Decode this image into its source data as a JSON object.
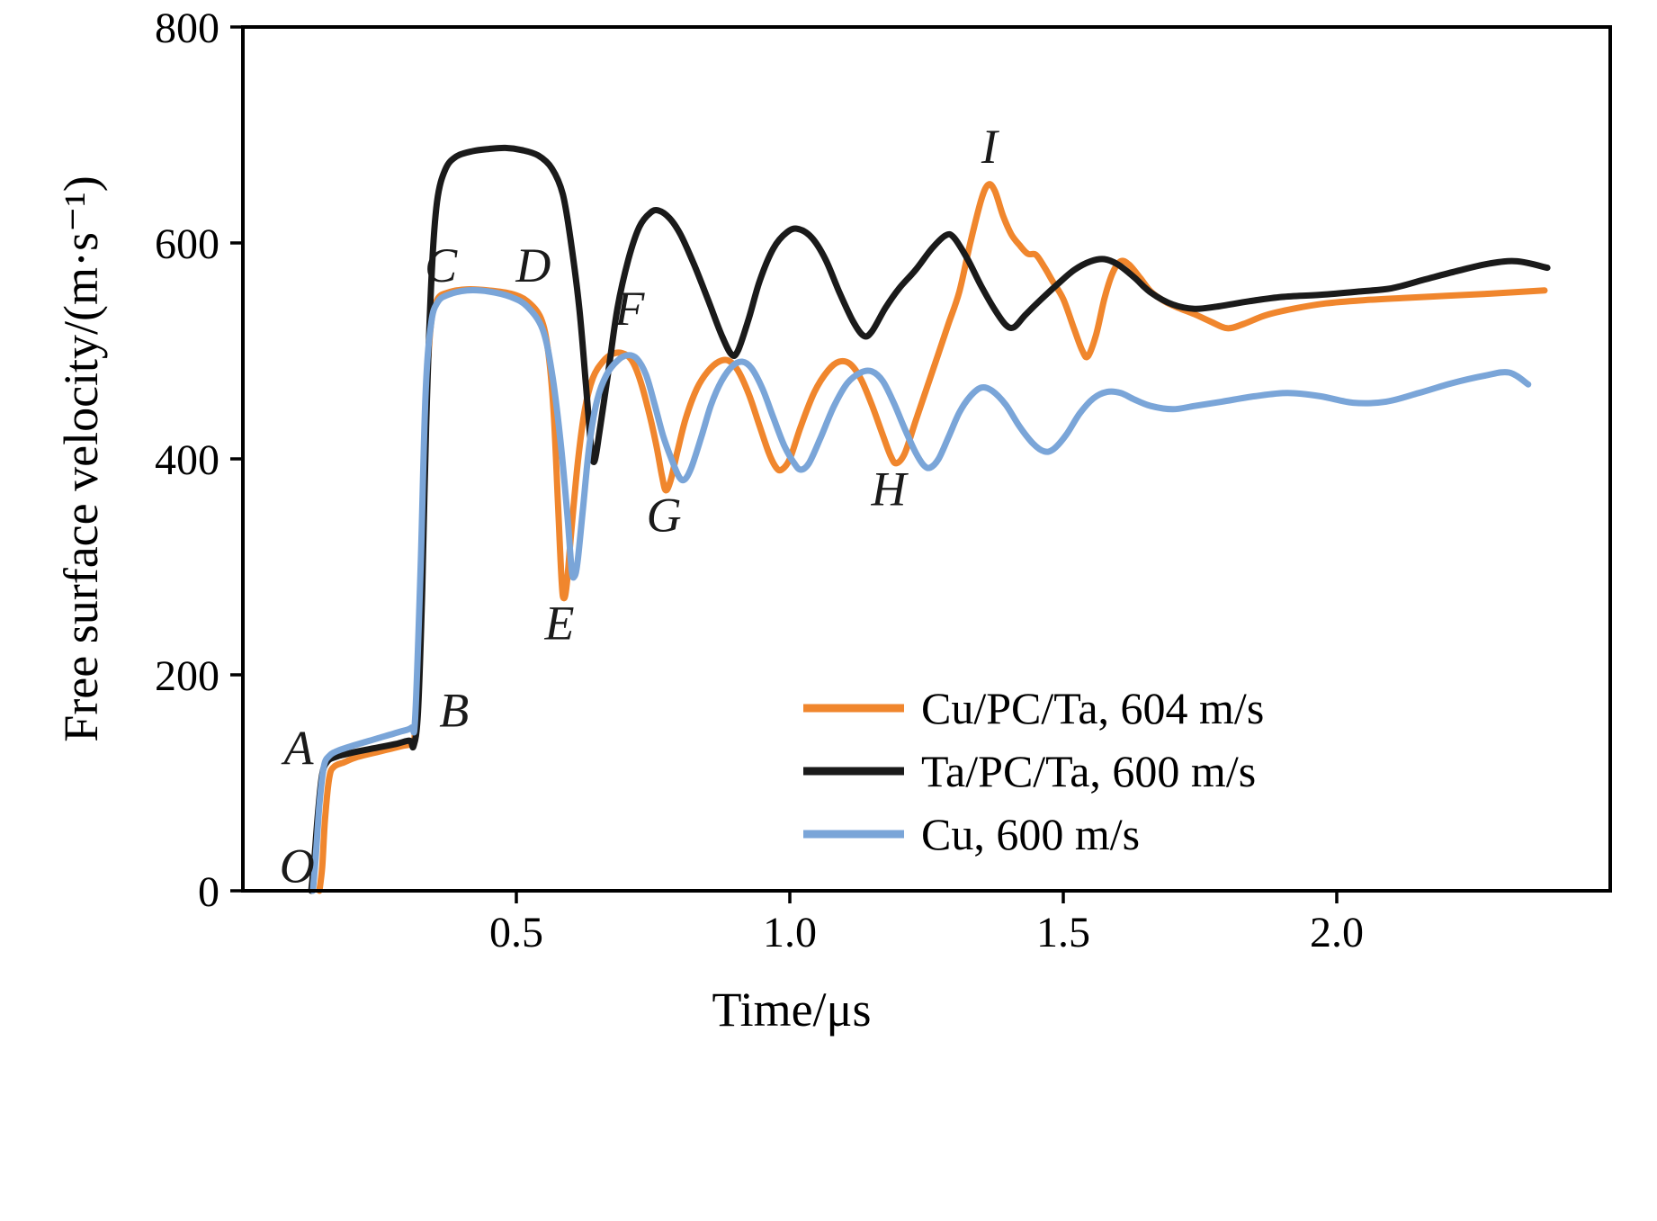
{
  "figure": {
    "background": "#ffffff",
    "frame_color": "#000000"
  },
  "chart_data": {
    "type": "line",
    "title": "",
    "xlabel": "Time/μs",
    "ylabel": "Free surface velocity/(m·s⁻¹)",
    "xlim": [
      0,
      2.5
    ],
    "ylim": [
      0,
      800
    ],
    "x_ticks": [
      0.5,
      1.0,
      1.5,
      2.0
    ],
    "x_tick_labels": [
      "0.5",
      "1.0",
      "1.5",
      "2.0"
    ],
    "y_ticks": [
      0,
      200,
      400,
      600,
      800
    ],
    "y_tick_labels": [
      "0",
      "200",
      "400",
      "600",
      "800"
    ],
    "grid": false,
    "legend_position": "lower-right",
    "series": [
      {
        "name": "Cu/PC/Ta, 604 m/s",
        "color": "#f0862d",
        "points": [
          [
            0.14,
            0
          ],
          [
            0.145,
            22
          ],
          [
            0.15,
            65
          ],
          [
            0.158,
            105
          ],
          [
            0.167,
            115
          ],
          [
            0.185,
            119
          ],
          [
            0.21,
            124
          ],
          [
            0.25,
            129
          ],
          [
            0.29,
            134
          ],
          [
            0.308,
            137
          ],
          [
            0.315,
            150
          ],
          [
            0.325,
            270
          ],
          [
            0.333,
            430
          ],
          [
            0.343,
            520
          ],
          [
            0.355,
            547
          ],
          [
            0.375,
            554
          ],
          [
            0.41,
            557
          ],
          [
            0.45,
            556
          ],
          [
            0.49,
            553
          ],
          [
            0.52,
            546
          ],
          [
            0.545,
            530
          ],
          [
            0.558,
            500
          ],
          [
            0.568,
            445
          ],
          [
            0.576,
            360
          ],
          [
            0.583,
            285
          ],
          [
            0.587,
            271
          ],
          [
            0.592,
            283
          ],
          [
            0.6,
            330
          ],
          [
            0.612,
            395
          ],
          [
            0.625,
            445
          ],
          [
            0.64,
            475
          ],
          [
            0.658,
            490
          ],
          [
            0.675,
            497
          ],
          [
            0.693,
            498
          ],
          [
            0.71,
            492
          ],
          [
            0.725,
            475
          ],
          [
            0.74,
            448
          ],
          [
            0.755,
            415
          ],
          [
            0.766,
            385
          ],
          [
            0.773,
            371
          ],
          [
            0.782,
            380
          ],
          [
            0.795,
            408
          ],
          [
            0.81,
            438
          ],
          [
            0.83,
            465
          ],
          [
            0.85,
            481
          ],
          [
            0.87,
            490
          ],
          [
            0.888,
            491
          ],
          [
            0.905,
            482
          ],
          [
            0.925,
            460
          ],
          [
            0.945,
            430
          ],
          [
            0.962,
            405
          ],
          [
            0.975,
            392
          ],
          [
            0.985,
            390
          ],
          [
            1.0,
            400
          ],
          [
            1.02,
            430
          ],
          [
            1.045,
            462
          ],
          [
            1.07,
            482
          ],
          [
            1.09,
            490
          ],
          [
            1.11,
            488
          ],
          [
            1.13,
            474
          ],
          [
            1.15,
            450
          ],
          [
            1.17,
            422
          ],
          [
            1.185,
            402
          ],
          [
            1.195,
            396
          ],
          [
            1.21,
            405
          ],
          [
            1.23,
            435
          ],
          [
            1.25,
            465
          ],
          [
            1.27,
            495
          ],
          [
            1.29,
            525
          ],
          [
            1.31,
            555
          ],
          [
            1.33,
            600
          ],
          [
            1.35,
            640
          ],
          [
            1.363,
            654
          ],
          [
            1.375,
            648
          ],
          [
            1.39,
            625
          ],
          [
            1.405,
            608
          ],
          [
            1.42,
            598
          ],
          [
            1.435,
            590
          ],
          [
            1.45,
            589
          ],
          [
            1.465,
            578
          ],
          [
            1.48,
            565
          ],
          [
            1.5,
            548
          ],
          [
            1.52,
            520
          ],
          [
            1.535,
            500
          ],
          [
            1.545,
            495
          ],
          [
            1.56,
            515
          ],
          [
            1.575,
            548
          ],
          [
            1.59,
            572
          ],
          [
            1.605,
            583
          ],
          [
            1.62,
            580
          ],
          [
            1.64,
            568
          ],
          [
            1.66,
            555
          ],
          [
            1.685,
            546
          ],
          [
            1.71,
            540
          ],
          [
            1.74,
            534
          ],
          [
            1.77,
            527
          ],
          [
            1.8,
            521
          ],
          [
            1.83,
            525
          ],
          [
            1.87,
            533
          ],
          [
            1.92,
            539
          ],
          [
            1.98,
            544
          ],
          [
            2.05,
            547
          ],
          [
            2.12,
            549
          ],
          [
            2.2,
            551
          ],
          [
            2.28,
            553
          ],
          [
            2.38,
            556
          ]
        ]
      },
      {
        "name": "Ta/PC/Ta, 600 m/s",
        "color": "#1a1a1a",
        "points": [
          [
            0.125,
            0
          ],
          [
            0.13,
            25
          ],
          [
            0.137,
            70
          ],
          [
            0.145,
            108
          ],
          [
            0.155,
            120
          ],
          [
            0.17,
            124
          ],
          [
            0.2,
            128
          ],
          [
            0.24,
            132
          ],
          [
            0.28,
            136
          ],
          [
            0.305,
            139
          ],
          [
            0.312,
            134
          ],
          [
            0.32,
            165
          ],
          [
            0.328,
            280
          ],
          [
            0.335,
            430
          ],
          [
            0.345,
            570
          ],
          [
            0.355,
            638
          ],
          [
            0.37,
            668
          ],
          [
            0.39,
            680
          ],
          [
            0.42,
            685
          ],
          [
            0.45,
            687
          ],
          [
            0.48,
            688
          ],
          [
            0.51,
            686
          ],
          [
            0.54,
            681
          ],
          [
            0.565,
            669
          ],
          [
            0.585,
            645
          ],
          [
            0.6,
            600
          ],
          [
            0.615,
            540
          ],
          [
            0.627,
            470
          ],
          [
            0.637,
            410
          ],
          [
            0.643,
            398
          ],
          [
            0.652,
            425
          ],
          [
            0.668,
            480
          ],
          [
            0.685,
            540
          ],
          [
            0.705,
            585
          ],
          [
            0.725,
            615
          ],
          [
            0.745,
            628
          ],
          [
            0.76,
            630
          ],
          [
            0.78,
            623
          ],
          [
            0.8,
            608
          ],
          [
            0.825,
            580
          ],
          [
            0.85,
            548
          ],
          [
            0.875,
            515
          ],
          [
            0.893,
            497
          ],
          [
            0.905,
            500
          ],
          [
            0.925,
            530
          ],
          [
            0.945,
            565
          ],
          [
            0.97,
            595
          ],
          [
            0.995,
            610
          ],
          [
            1.015,
            613
          ],
          [
            1.04,
            605
          ],
          [
            1.065,
            585
          ],
          [
            1.09,
            555
          ],
          [
            1.115,
            528
          ],
          [
            1.135,
            514
          ],
          [
            1.15,
            518
          ],
          [
            1.175,
            540
          ],
          [
            1.2,
            558
          ],
          [
            1.23,
            575
          ],
          [
            1.26,
            595
          ],
          [
            1.285,
            607
          ],
          [
            1.3,
            605
          ],
          [
            1.325,
            585
          ],
          [
            1.35,
            560
          ],
          [
            1.375,
            538
          ],
          [
            1.395,
            524
          ],
          [
            1.41,
            522
          ],
          [
            1.43,
            533
          ],
          [
            1.46,
            548
          ],
          [
            1.49,
            562
          ],
          [
            1.52,
            575
          ],
          [
            1.55,
            583
          ],
          [
            1.575,
            585
          ],
          [
            1.6,
            580
          ],
          [
            1.63,
            568
          ],
          [
            1.66,
            554
          ],
          [
            1.7,
            543
          ],
          [
            1.74,
            539
          ],
          [
            1.78,
            541
          ],
          [
            1.84,
            546
          ],
          [
            1.9,
            550
          ],
          [
            1.97,
            552
          ],
          [
            2.04,
            555
          ],
          [
            2.1,
            558
          ],
          [
            2.16,
            566
          ],
          [
            2.22,
            574
          ],
          [
            2.28,
            581
          ],
          [
            2.33,
            583
          ],
          [
            2.385,
            577
          ]
        ]
      },
      {
        "name": "Cu, 600 m/s",
        "color": "#7aa5d8",
        "points": [
          [
            0.128,
            0
          ],
          [
            0.133,
            30
          ],
          [
            0.14,
            80
          ],
          [
            0.148,
            115
          ],
          [
            0.158,
            125
          ],
          [
            0.175,
            130
          ],
          [
            0.205,
            135
          ],
          [
            0.245,
            141
          ],
          [
            0.285,
            147
          ],
          [
            0.308,
            151
          ],
          [
            0.315,
            160
          ],
          [
            0.325,
            300
          ],
          [
            0.334,
            460
          ],
          [
            0.344,
            525
          ],
          [
            0.356,
            545
          ],
          [
            0.375,
            552
          ],
          [
            0.41,
            556
          ],
          [
            0.45,
            555
          ],
          [
            0.49,
            550
          ],
          [
            0.52,
            541
          ],
          [
            0.548,
            520
          ],
          [
            0.565,
            480
          ],
          [
            0.58,
            420
          ],
          [
            0.593,
            350
          ],
          [
            0.601,
            298
          ],
          [
            0.606,
            291
          ],
          [
            0.612,
            305
          ],
          [
            0.622,
            355
          ],
          [
            0.634,
            415
          ],
          [
            0.648,
            455
          ],
          [
            0.665,
            478
          ],
          [
            0.685,
            491
          ],
          [
            0.703,
            496
          ],
          [
            0.72,
            493
          ],
          [
            0.737,
            478
          ],
          [
            0.752,
            452
          ],
          [
            0.768,
            422
          ],
          [
            0.785,
            398
          ],
          [
            0.798,
            383
          ],
          [
            0.808,
            381
          ],
          [
            0.82,
            392
          ],
          [
            0.838,
            420
          ],
          [
            0.856,
            450
          ],
          [
            0.875,
            472
          ],
          [
            0.895,
            486
          ],
          [
            0.913,
            490
          ],
          [
            0.93,
            484
          ],
          [
            0.95,
            465
          ],
          [
            0.97,
            438
          ],
          [
            0.99,
            412
          ],
          [
            1.008,
            396
          ],
          [
            1.02,
            390
          ],
          [
            1.035,
            396
          ],
          [
            1.055,
            418
          ],
          [
            1.08,
            448
          ],
          [
            1.105,
            470
          ],
          [
            1.13,
            480
          ],
          [
            1.15,
            481
          ],
          [
            1.17,
            472
          ],
          [
            1.19,
            452
          ],
          [
            1.21,
            428
          ],
          [
            1.23,
            406
          ],
          [
            1.245,
            394
          ],
          [
            1.257,
            392
          ],
          [
            1.272,
            400
          ],
          [
            1.29,
            420
          ],
          [
            1.31,
            443
          ],
          [
            1.33,
            458
          ],
          [
            1.35,
            466
          ],
          [
            1.37,
            463
          ],
          [
            1.395,
            450
          ],
          [
            1.42,
            430
          ],
          [
            1.445,
            414
          ],
          [
            1.465,
            407
          ],
          [
            1.482,
            409
          ],
          [
            1.505,
            422
          ],
          [
            1.53,
            442
          ],
          [
            1.555,
            456
          ],
          [
            1.58,
            462
          ],
          [
            1.605,
            461
          ],
          [
            1.63,
            455
          ],
          [
            1.66,
            449
          ],
          [
            1.7,
            446
          ],
          [
            1.74,
            449
          ],
          [
            1.79,
            453
          ],
          [
            1.85,
            458
          ],
          [
            1.91,
            461
          ],
          [
            1.97,
            458
          ],
          [
            2.03,
            452
          ],
          [
            2.09,
            453
          ],
          [
            2.15,
            461
          ],
          [
            2.21,
            470
          ],
          [
            2.27,
            477
          ],
          [
            2.315,
            480
          ],
          [
            2.35,
            469
          ]
        ]
      }
    ],
    "annotations": [
      {
        "label": "O",
        "t": 0.099,
        "v": 23
      },
      {
        "label": "A",
        "t": 0.102,
        "v": 132
      },
      {
        "label": "B",
        "t": 0.386,
        "v": 167
      },
      {
        "label": "C",
        "t": 0.362,
        "v": 579
      },
      {
        "label": "D",
        "t": 0.531,
        "v": 579
      },
      {
        "label": "E",
        "t": 0.579,
        "v": 248
      },
      {
        "label": "F",
        "t": 0.707,
        "v": 539
      },
      {
        "label": "G",
        "t": 0.77,
        "v": 348
      },
      {
        "label": "H",
        "t": 1.181,
        "v": 372
      },
      {
        "label": "I",
        "t": 1.365,
        "v": 689
      }
    ]
  }
}
